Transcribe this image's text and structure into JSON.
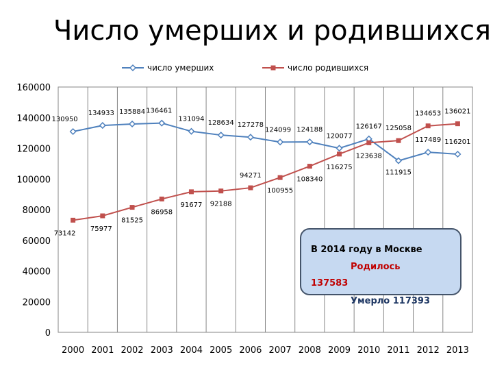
{
  "page_title": "Число умерших и родившихся",
  "chart_data": {
    "type": "line",
    "title": "",
    "categories": [
      "2000",
      "2001",
      "2002",
      "2003",
      "2004",
      "2005",
      "2006",
      "2007",
      "2008",
      "2009",
      "2010",
      "2011",
      "2012",
      "2013"
    ],
    "series": [
      {
        "name": "число умерших",
        "color": "#4f81bd",
        "marker": "diamond",
        "values": [
          130950,
          134933,
          135884,
          136461,
          131094,
          128634,
          127278,
          124099,
          124188,
          120077,
          126167,
          111915,
          117489,
          116201
        ]
      },
      {
        "name": "число родившихся",
        "color": "#c0504d",
        "marker": "square",
        "values": [
          73142,
          75977,
          81525,
          86958,
          91677,
          92188,
          94271,
          100955,
          108340,
          116275,
          123638,
          125058,
          134653,
          136021
        ]
      }
    ],
    "ylim": [
      0,
      160000
    ],
    "yticks": [
      0,
      20000,
      40000,
      60000,
      80000,
      100000,
      120000,
      140000,
      160000
    ],
    "grid": "vertical",
    "legend": "top",
    "xlabel": "",
    "ylabel": ""
  },
  "info_box": {
    "line1": "В 2014 году в Москве",
    "line2": "Родилось",
    "line3": "137583",
    "line4": "Умерло 117393",
    "colors": {
      "fill": "#c6d9f1",
      "border": "#44546a",
      "born": "#c00000",
      "died": "#1f3864"
    }
  }
}
